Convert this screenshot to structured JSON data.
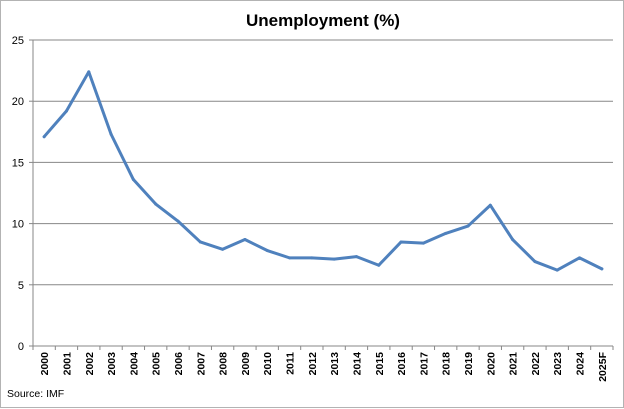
{
  "chart_data": {
    "type": "line",
    "title": "Unemployment (%)",
    "xlabel": "",
    "ylabel": "",
    "categories": [
      "2000",
      "2001",
      "2002",
      "2003",
      "2004",
      "2005",
      "2006",
      "2007",
      "2008",
      "2009",
      "2010",
      "2011",
      "2012",
      "2013",
      "2014",
      "2015",
      "2016",
      "2017",
      "2018",
      "2019",
      "2020",
      "2021",
      "2022",
      "2023",
      "2024",
      "2025F"
    ],
    "series": [
      {
        "color": "#4f81bd",
        "values": [
          17.1,
          19.2,
          22.4,
          17.3,
          13.6,
          11.6,
          10.2,
          8.5,
          7.9,
          8.7,
          7.8,
          7.2,
          7.2,
          7.1,
          7.3,
          6.6,
          8.5,
          8.4,
          9.2,
          9.8,
          11.5,
          8.7,
          6.9,
          6.2,
          7.2,
          6.3
        ]
      }
    ],
    "ylim": [
      0,
      25
    ],
    "yticks": [
      0,
      5,
      10,
      15,
      20,
      25
    ],
    "grid": true,
    "legend": "none",
    "source": "Source:  IMF"
  }
}
